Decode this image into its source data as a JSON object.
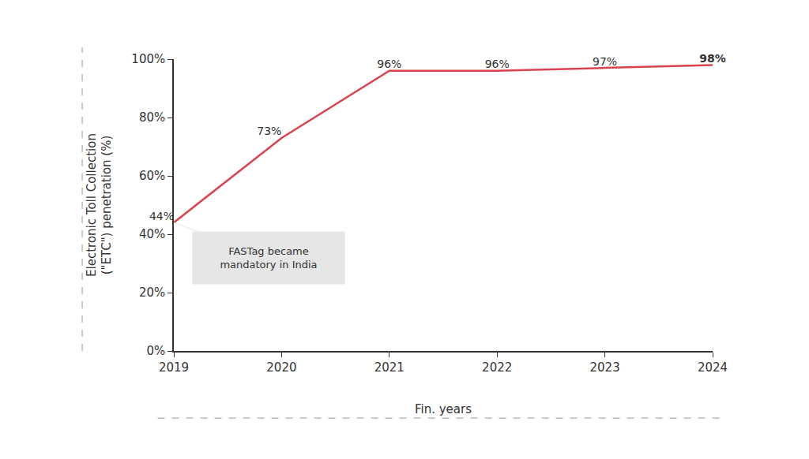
{
  "chart_data": {
    "type": "line",
    "y_label": "Electronic Toll Collection (\"ETC\") penetration (%)",
    "x_label": "Fin. years",
    "annotation": "FASTag became mandatory in India",
    "x": [
      2019,
      2020,
      2021,
      2022,
      2023,
      2024
    ],
    "values": [
      44,
      73,
      96,
      96,
      97,
      98
    ],
    "value_labels": [
      "44%",
      "73%",
      "96%",
      "96%",
      "97%",
      "98%"
    ],
    "color": "#d9434e",
    "data_labels": true,
    "xlim": [
      2019,
      2024
    ],
    "xticks": [
      2019,
      2020,
      2021,
      2022,
      2023,
      2024
    ],
    "ylim": [
      0,
      100
    ],
    "yticks": [
      {
        "value": 0,
        "label": "0%"
      },
      {
        "value": 20,
        "label": "20%"
      },
      {
        "value": 40,
        "label": "40%"
      },
      {
        "value": 60,
        "label": "60%"
      },
      {
        "value": 80,
        "label": "80%"
      },
      {
        "value": 100,
        "label": "100%"
      }
    ],
    "grid": false
  }
}
